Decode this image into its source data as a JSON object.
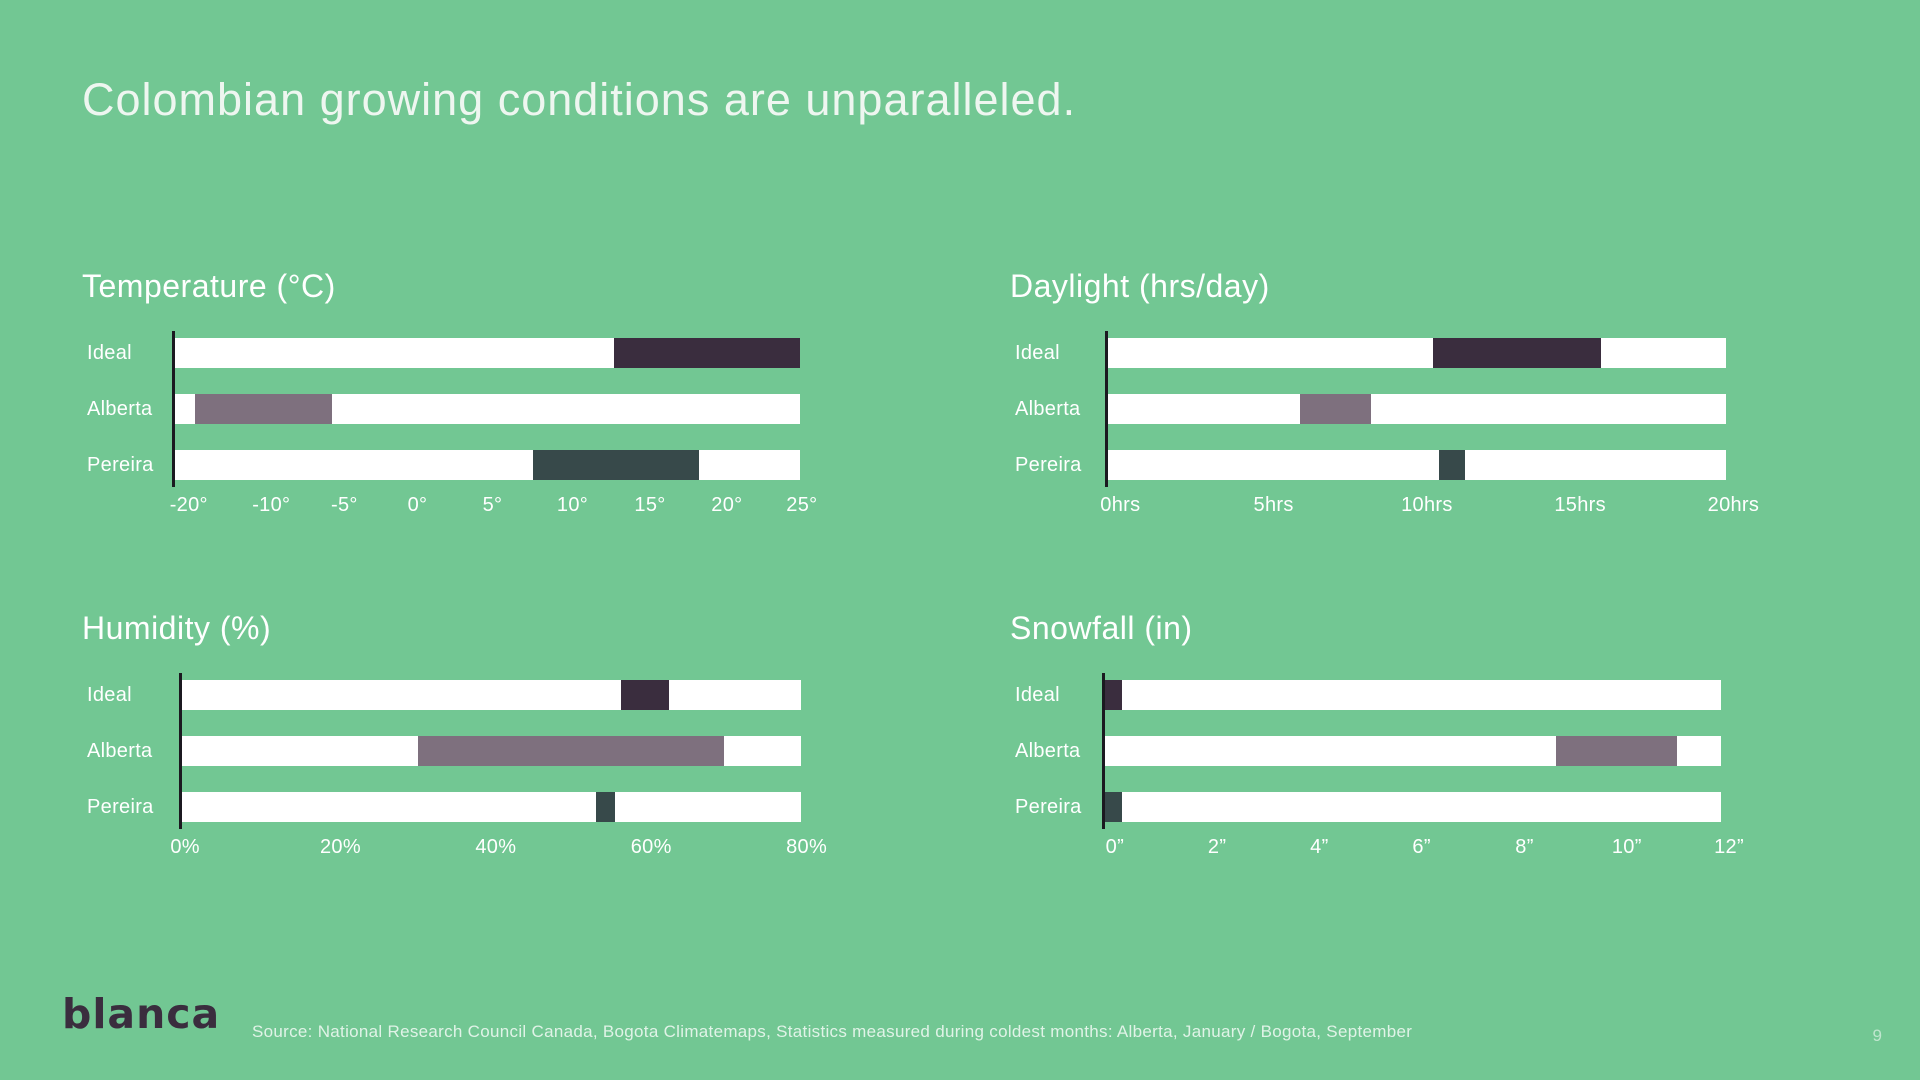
{
  "slide": {
    "title": "Colombian growing conditions are unparalleled.",
    "logo": "blanca",
    "source": "Source: National Research Council Canada, Bogota Climatemaps, Statistics measured during coldest months: Alberta, January / Bogota, September",
    "page_number": "9"
  },
  "colors": {
    "background": "#72c793",
    "track": "#ffffff",
    "axis_line": "#1b1920",
    "ideal": "#3a2d3e",
    "alberta": "#7e707e",
    "pereira": "#37494a",
    "text": "#ffffff",
    "logo_text": "#3a2d3e"
  },
  "chart_data": [
    {
      "id": "temperature",
      "type": "range_bar",
      "title": "Temperature (°C)",
      "unit": "°C",
      "categories": [
        "Ideal",
        "Alberta",
        "Pereira"
      ],
      "axis_note": "ticks evenly spaced although values are non-linear",
      "ticks": [
        {
          "label": "-20°",
          "pos_pct": 2.2
        },
        {
          "label": "-10°",
          "pos_pct": 15.4
        },
        {
          "label": "-5°",
          "pos_pct": 27.1
        },
        {
          "label": "0°",
          "pos_pct": 38.8
        },
        {
          "label": "5°",
          "pos_pct": 50.8
        },
        {
          "label": "10°",
          "pos_pct": 63.6
        },
        {
          "label": "15°",
          "pos_pct": 76.0
        },
        {
          "label": "20°",
          "pos_pct": 88.3
        },
        {
          "label": "25°",
          "pos_pct": 100.3
        }
      ],
      "rows": [
        {
          "label": "Ideal",
          "approx_range": [
            13,
            25
          ],
          "start_pct": 70.2,
          "end_pct": 100.0,
          "color": "ideal"
        },
        {
          "label": "Alberta",
          "approx_range": [
            -19,
            -6
          ],
          "start_pct": 3.2,
          "end_pct": 25.1,
          "color": "alberta"
        },
        {
          "label": "Pereira",
          "approx_range": [
            7.5,
            18
          ],
          "start_pct": 57.3,
          "end_pct": 83.8,
          "color": "pereira"
        }
      ]
    },
    {
      "id": "daylight",
      "type": "range_bar",
      "title": "Daylight (hrs/day)",
      "unit": "hrs",
      "categories": [
        "Ideal",
        "Alberta",
        "Pereira"
      ],
      "axis_note": "linear 0-20 hrs",
      "ticks": [
        {
          "label": "0hrs",
          "pos_pct": 2.0
        },
        {
          "label": "5hrs",
          "pos_pct": 26.8
        },
        {
          "label": "10hrs",
          "pos_pct": 51.6
        },
        {
          "label": "15hrs",
          "pos_pct": 76.4
        },
        {
          "label": "20hrs",
          "pos_pct": 101.2
        }
      ],
      "rows": [
        {
          "label": "Ideal",
          "approx_range": [
            10.5,
            16
          ],
          "start_pct": 52.6,
          "end_pct": 79.8,
          "color": "ideal"
        },
        {
          "label": "Alberta",
          "approx_range": [
            6.3,
            8.5
          ],
          "start_pct": 31.1,
          "end_pct": 42.5,
          "color": "alberta"
        },
        {
          "label": "Pereira",
          "approx_range": [
            10.7,
            11.5
          ],
          "start_pct": 53.5,
          "end_pct": 57.7,
          "color": "pereira"
        }
      ]
    },
    {
      "id": "humidity",
      "type": "range_bar",
      "title": "Humidity (%)",
      "unit": "%",
      "categories": [
        "Ideal",
        "Alberta",
        "Pereira"
      ],
      "axis_note": "linear 0-80 %",
      "ticks": [
        {
          "label": "0%",
          "pos_pct": 0.5
        },
        {
          "label": "20%",
          "pos_pct": 25.6
        },
        {
          "label": "40%",
          "pos_pct": 50.7
        },
        {
          "label": "60%",
          "pos_pct": 75.8
        },
        {
          "label": "80%",
          "pos_pct": 100.9
        }
      ],
      "rows": [
        {
          "label": "Ideal",
          "approx_range": [
            56,
            62
          ],
          "start_pct": 71.0,
          "end_pct": 78.6,
          "color": "ideal"
        },
        {
          "label": "Alberta",
          "approx_range": [
            30,
            70
          ],
          "start_pct": 38.1,
          "end_pct": 87.5,
          "color": "alberta"
        },
        {
          "label": "Pereira",
          "approx_range": [
            53,
            55
          ],
          "start_pct": 66.9,
          "end_pct": 70.0,
          "color": "pereira"
        }
      ]
    },
    {
      "id": "snowfall",
      "type": "range_bar",
      "title": "Snowfall (in)",
      "unit": "in",
      "categories": [
        "Ideal",
        "Alberta",
        "Pereira"
      ],
      "axis_note": "linear 0-12 inches",
      "ticks": [
        {
          "label": "0”",
          "pos_pct": 1.6
        },
        {
          "label": "2”",
          "pos_pct": 18.2
        },
        {
          "label": "4”",
          "pos_pct": 34.8
        },
        {
          "label": "6”",
          "pos_pct": 51.4
        },
        {
          "label": "8”",
          "pos_pct": 68.1
        },
        {
          "label": "10”",
          "pos_pct": 84.7
        },
        {
          "label": "12”",
          "pos_pct": 101.3
        }
      ],
      "rows": [
        {
          "label": "Ideal",
          "approx_range": [
            0,
            0.3
          ],
          "start_pct": 0.0,
          "end_pct": 2.8,
          "color": "ideal"
        },
        {
          "label": "Alberta",
          "approx_range": [
            8.8,
            11.2
          ],
          "start_pct": 73.2,
          "end_pct": 92.8,
          "color": "alberta"
        },
        {
          "label": "Pereira",
          "approx_range": [
            0,
            0.3
          ],
          "start_pct": 0.0,
          "end_pct": 2.8,
          "color": "pereira"
        }
      ]
    }
  ]
}
